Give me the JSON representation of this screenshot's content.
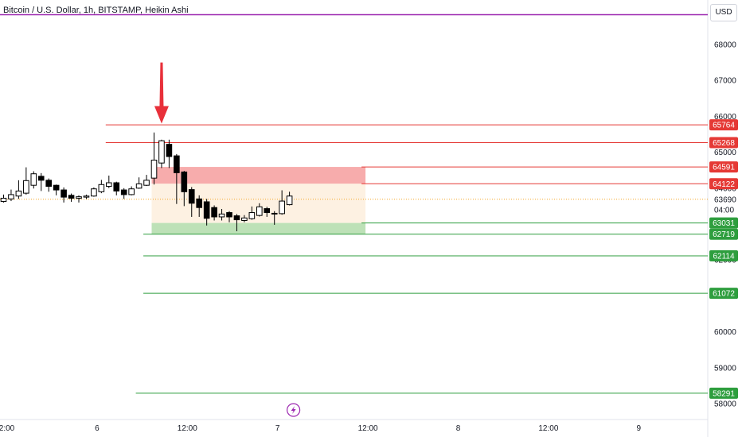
{
  "header": {
    "title": "Bitcoin / U.S. Dollar, 1h, BITSTAMP, Heikin Ashi",
    "currency": "USD"
  },
  "colors": {
    "top_line": "#9c27b0",
    "resistance": "#e53935",
    "support": "#2e9e3e",
    "up_candle": "#ffffff",
    "down_candle": "#000000",
    "arrow": "#e8303a",
    "current_price_line": "#f5a623",
    "resistance_zone": "#f7a8a8",
    "support_zone": "#b9dfb3",
    "middle_zone": "#fdf1e2",
    "lightning": "#9c27b0"
  },
  "chart_data": {
    "type": "candlestick",
    "style": "Heikin Ashi",
    "symbol": "Bitcoin / U.S. Dollar",
    "interval": "1h",
    "exchange": "BITSTAMP",
    "ylim": [
      57700,
      68600
    ],
    "y_ticks": [
      58000,
      59000,
      60000,
      61000,
      62000,
      63000,
      64000,
      65000,
      66000,
      67000,
      68000
    ],
    "x_ticks": [
      {
        "label": "2:00",
        "index": 0
      },
      {
        "label": "6",
        "index": 12
      },
      {
        "label": "12:00",
        "index": 24
      },
      {
        "label": "7",
        "index": 36
      },
      {
        "label": "12:00",
        "index": 48
      },
      {
        "label": "8",
        "index": 60
      },
      {
        "label": "12:00",
        "index": 72
      },
      {
        "label": "9",
        "index": 84
      }
    ],
    "current_price": 63690,
    "countdown": "04:00",
    "candles": [
      {
        "o": 63630,
        "h": 63820,
        "l": 63600,
        "c": 63720
      },
      {
        "o": 63700,
        "h": 63960,
        "l": 63640,
        "c": 63820
      },
      {
        "o": 63780,
        "h": 64220,
        "l": 63700,
        "c": 63920
      },
      {
        "o": 63860,
        "h": 64580,
        "l": 63820,
        "c": 64210
      },
      {
        "o": 64080,
        "h": 64470,
        "l": 63990,
        "c": 64400
      },
      {
        "o": 64330,
        "h": 64420,
        "l": 63920,
        "c": 64220
      },
      {
        "o": 64220,
        "h": 64270,
        "l": 63900,
        "c": 64050
      },
      {
        "o": 64080,
        "h": 64100,
        "l": 63800,
        "c": 63950
      },
      {
        "o": 63950,
        "h": 64020,
        "l": 63600,
        "c": 63750
      },
      {
        "o": 63800,
        "h": 63850,
        "l": 63620,
        "c": 63720
      },
      {
        "o": 63720,
        "h": 63800,
        "l": 63600,
        "c": 63760
      },
      {
        "o": 63750,
        "h": 63820,
        "l": 63700,
        "c": 63780
      },
      {
        "o": 63780,
        "h": 64020,
        "l": 63760,
        "c": 63980
      },
      {
        "o": 63900,
        "h": 64230,
        "l": 63860,
        "c": 64100
      },
      {
        "o": 64050,
        "h": 64350,
        "l": 64000,
        "c": 64150
      },
      {
        "o": 64150,
        "h": 64180,
        "l": 63800,
        "c": 63920
      },
      {
        "o": 63950,
        "h": 64000,
        "l": 63700,
        "c": 63820
      },
      {
        "o": 63820,
        "h": 64050,
        "l": 63800,
        "c": 63980
      },
      {
        "o": 64000,
        "h": 64300,
        "l": 63980,
        "c": 64120
      },
      {
        "o": 64080,
        "h": 64370,
        "l": 64060,
        "c": 64220
      },
      {
        "o": 64280,
        "h": 65550,
        "l": 64100,
        "c": 64780
      },
      {
        "o": 64700,
        "h": 65350,
        "l": 64560,
        "c": 65320
      },
      {
        "o": 65220,
        "h": 65350,
        "l": 64560,
        "c": 64880
      },
      {
        "o": 64900,
        "h": 64950,
        "l": 63560,
        "c": 64430
      },
      {
        "o": 64450,
        "h": 64480,
        "l": 63500,
        "c": 63900
      },
      {
        "o": 63960,
        "h": 64030,
        "l": 63200,
        "c": 63580
      },
      {
        "o": 63700,
        "h": 63800,
        "l": 63200,
        "c": 63460
      },
      {
        "o": 63620,
        "h": 63700,
        "l": 62960,
        "c": 63160
      },
      {
        "o": 63460,
        "h": 63520,
        "l": 63100,
        "c": 63200
      },
      {
        "o": 63200,
        "h": 63420,
        "l": 63100,
        "c": 63280
      },
      {
        "o": 63320,
        "h": 63360,
        "l": 63050,
        "c": 63200
      },
      {
        "o": 63230,
        "h": 63280,
        "l": 62800,
        "c": 63120
      },
      {
        "o": 63100,
        "h": 63250,
        "l": 63050,
        "c": 63170
      },
      {
        "o": 63150,
        "h": 63490,
        "l": 63120,
        "c": 63320
      },
      {
        "o": 63240,
        "h": 63580,
        "l": 63210,
        "c": 63480
      },
      {
        "o": 63430,
        "h": 63480,
        "l": 63200,
        "c": 63320
      },
      {
        "o": 63300,
        "h": 63360,
        "l": 62980,
        "c": 63280
      },
      {
        "o": 63290,
        "h": 63940,
        "l": 63260,
        "c": 63640
      },
      {
        "o": 63540,
        "h": 63900,
        "l": 63520,
        "c": 63780
      }
    ],
    "horizontal_lines": [
      {
        "price": 68600,
        "role": "top",
        "from_index": -1
      },
      {
        "price": 65764,
        "role": "resistance",
        "from_index": 14
      },
      {
        "price": 65268,
        "role": "resistance",
        "from_index": 14
      },
      {
        "price": 64591,
        "role": "resistance",
        "from_index": 48
      },
      {
        "price": 64122,
        "role": "resistance",
        "from_index": 48
      },
      {
        "price": 63031,
        "role": "support",
        "from_index": 48
      },
      {
        "price": 62719,
        "role": "support",
        "from_index": 19
      },
      {
        "price": 62114,
        "role": "support",
        "from_index": 19
      },
      {
        "price": 61072,
        "role": "support",
        "from_index": 19
      },
      {
        "price": 58291,
        "role": "support",
        "from_index": 18
      }
    ],
    "price_badges": [
      {
        "label": "65764",
        "price": 65764,
        "role": "resistance"
      },
      {
        "label": "65268",
        "price": 65268,
        "role": "resistance"
      },
      {
        "label": "64591",
        "price": 64591,
        "role": "resistance"
      },
      {
        "label": "64122",
        "price": 64122,
        "role": "resistance"
      },
      {
        "label": "63031",
        "price": 63031,
        "role": "support"
      },
      {
        "label": "62719",
        "price": 62719,
        "role": "support"
      },
      {
        "label": "62114",
        "price": 62114,
        "role": "support"
      },
      {
        "label": "61072",
        "price": 61072,
        "role": "support"
      },
      {
        "label": "58291",
        "price": 58291,
        "role": "support"
      }
    ],
    "zones": [
      {
        "kind": "resistance_zone",
        "top": 64591,
        "bottom": 64122,
        "from_index": 20,
        "to_index": 48
      },
      {
        "kind": "middle_zone",
        "top": 64122,
        "bottom": 63031,
        "from_index": 20,
        "to_index": 48
      },
      {
        "kind": "support_zone",
        "top": 63031,
        "bottom": 62719,
        "from_index": 20,
        "to_index": 48
      }
    ],
    "arrow": {
      "index": 21,
      "from_price": 67500,
      "to_price": 65800
    },
    "lightning_marker": {
      "index": 38
    }
  }
}
